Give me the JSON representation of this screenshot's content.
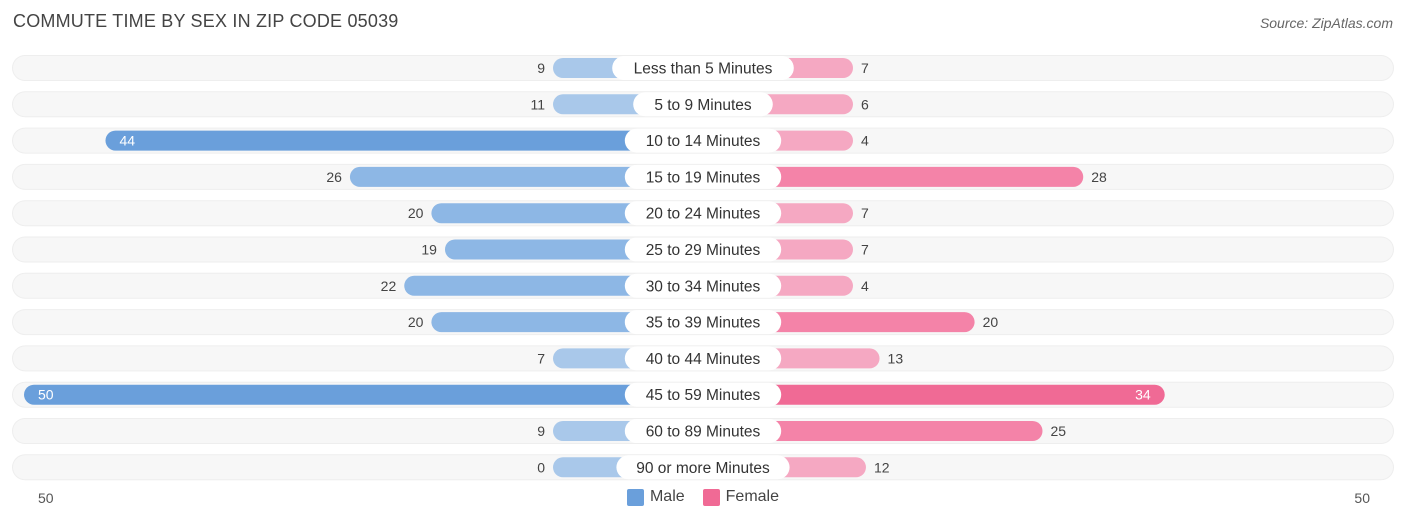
{
  "header": {
    "title": "COMMUTE TIME BY SEX IN ZIP CODE 05039",
    "source": "Source: ZipAtlas.com"
  },
  "legend": {
    "male_label": "Male",
    "female_label": "Female"
  },
  "axis": {
    "left_label": "50",
    "right_label": "50"
  },
  "colors": {
    "male": "#6a9fdb",
    "male_light": "#a9c8ea",
    "female": "#f06a95",
    "female_light": "#f5a8c2",
    "row_bg": "#eeeeee"
  },
  "chart_data": {
    "type": "bar",
    "orientation": "horizontal-diverging",
    "title": "COMMUTE TIME BY SEX IN ZIP CODE 05039",
    "categories": [
      "Less than 5 Minutes",
      "5 to 9 Minutes",
      "10 to 14 Minutes",
      "15 to 19 Minutes",
      "20 to 24 Minutes",
      "25 to 29 Minutes",
      "30 to 34 Minutes",
      "35 to 39 Minutes",
      "40 to 44 Minutes",
      "45 to 59 Minutes",
      "60 to 89 Minutes",
      "90 or more Minutes"
    ],
    "series": [
      {
        "name": "Male",
        "values": [
          9,
          11,
          44,
          26,
          20,
          19,
          22,
          20,
          7,
          50,
          9,
          0
        ]
      },
      {
        "name": "Female",
        "values": [
          7,
          6,
          4,
          28,
          7,
          7,
          4,
          20,
          13,
          34,
          25,
          12
        ]
      }
    ],
    "xlim": [
      -50,
      50
    ],
    "legend_position": "bottom-center"
  }
}
